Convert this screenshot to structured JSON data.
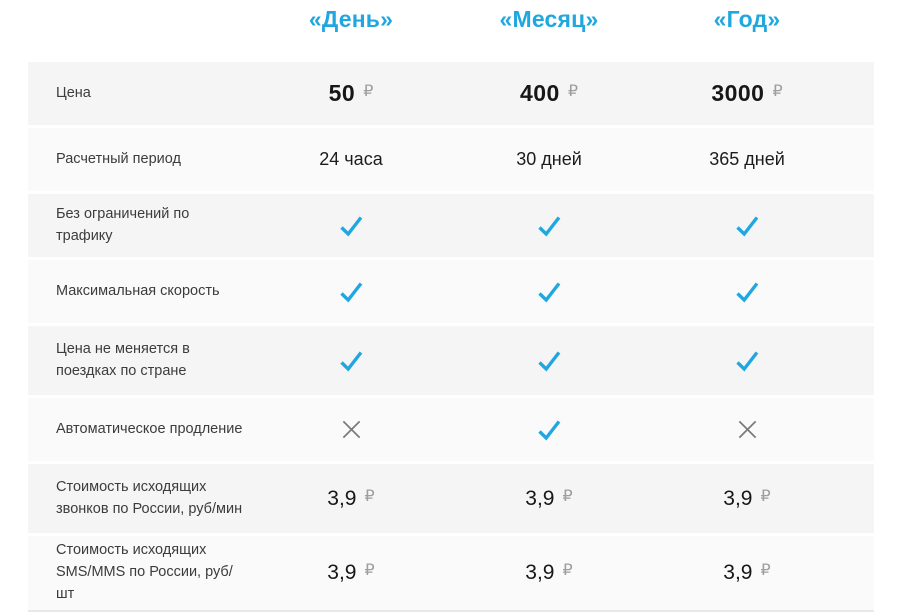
{
  "currency": "₽",
  "colors": {
    "accent": "#21a7e0",
    "row_dark": "#f5f5f5",
    "row_light": "#fafafa",
    "mark_cross": "#7a7a7a",
    "currency_muted": "#9e9e9e"
  },
  "header": {
    "columns": [
      "«День»",
      "«Месяц»",
      "«Год»"
    ]
  },
  "rows": [
    {
      "label": "Цена",
      "type": "price",
      "values": [
        "50",
        "400",
        "3000"
      ]
    },
    {
      "label": "Расчетный период",
      "type": "text",
      "values": [
        "24 часа",
        "30 дней",
        "365 дней"
      ]
    },
    {
      "label": "Без ограничений по трафику",
      "type": "mark",
      "values": [
        "check",
        "check",
        "check"
      ]
    },
    {
      "label": "Максимальная скорость",
      "type": "mark",
      "values": [
        "check",
        "check",
        "check"
      ]
    },
    {
      "label": "Цена не меняется в поездках по стране",
      "type": "mark",
      "values": [
        "check",
        "check",
        "check"
      ]
    },
    {
      "label": "Автоматическое продление",
      "type": "mark",
      "values": [
        "cross",
        "check",
        "cross"
      ]
    },
    {
      "label": "Стоимость исходящих звонков по России, руб/мин",
      "type": "price_small",
      "values": [
        "3,9",
        "3,9",
        "3,9"
      ]
    },
    {
      "label": "Стоимость исходящих SMS/MMS по России, руб/шт",
      "type": "price_small",
      "values": [
        "3,9",
        "3,9",
        "3,9"
      ]
    }
  ]
}
